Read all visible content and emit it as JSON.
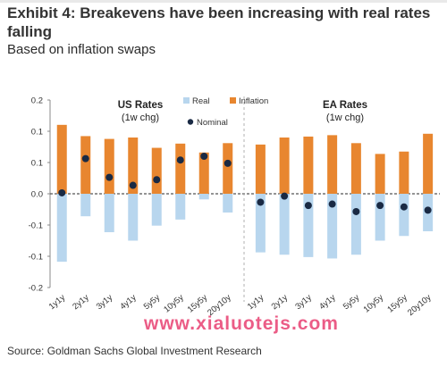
{
  "exhibit": {
    "title": "Exhibit 4: Breakevens have been increasing with real rates falling",
    "subtitle": "Based on inflation swaps",
    "source": "Source: Goldman Sachs Global Investment Research",
    "watermark": "www.xialuotejs.com"
  },
  "colors": {
    "real": "#b8d6ee",
    "inflation": "#e8862f",
    "nominal": "#1a2a44",
    "axis": "#888888",
    "divider": "#b0b0b0",
    "title": "#333333"
  },
  "chart_data": {
    "type": "bar",
    "ylim": [
      -0.2,
      0.2
    ],
    "yticks": [
      "0.2",
      "0.1",
      "0.1",
      "0.0",
      "-0.1",
      "-0.1",
      "-0.2"
    ],
    "grid": false,
    "legend_placement": "top-center",
    "legend": [
      {
        "label": "Real",
        "marker": "square",
        "series": "real"
      },
      {
        "label": "Inflation",
        "marker": "square",
        "series": "inflation"
      },
      {
        "label": "Nominal",
        "marker": "dot",
        "series": "nominal"
      }
    ],
    "panels": [
      {
        "title": "US Rates",
        "subtitle": "(1w chg)",
        "categories": [
          "1y1y",
          "2y1y",
          "3y1y",
          "4y1y",
          "5y5y",
          "10y5y",
          "15y5y",
          "20y10y"
        ],
        "series": [
          {
            "name": "Real",
            "values": [
              -0.145,
              -0.048,
              -0.082,
              -0.1,
              -0.068,
              -0.055,
              -0.012,
              -0.04
            ]
          },
          {
            "name": "Inflation",
            "values": [
              0.147,
              0.123,
              0.117,
              0.12,
              0.098,
              0.107,
              0.088,
              0.108
            ]
          },
          {
            "name": "Nominal",
            "values": [
              0.002,
              0.075,
              0.035,
              0.018,
              0.03,
              0.072,
              0.08,
              0.065
            ]
          }
        ]
      },
      {
        "title": "EA Rates",
        "subtitle": "(1w chg)",
        "categories": [
          "1y1y",
          "2y1y",
          "3y1y",
          "4y1y",
          "5y5y",
          "10y5y",
          "15y5y",
          "20y10y"
        ],
        "series": [
          {
            "name": "Real",
            "values": [
              -0.125,
              -0.13,
              -0.135,
              -0.138,
              -0.13,
              -0.1,
              -0.09,
              -0.08
            ]
          },
          {
            "name": "Inflation",
            "values": [
              0.105,
              0.12,
              0.122,
              0.125,
              0.108,
              0.085,
              0.09,
              0.128
            ]
          },
          {
            "name": "Nominal",
            "values": [
              -0.018,
              -0.005,
              -0.025,
              -0.022,
              -0.038,
              -0.025,
              -0.028,
              -0.035
            ]
          }
        ]
      }
    ]
  }
}
